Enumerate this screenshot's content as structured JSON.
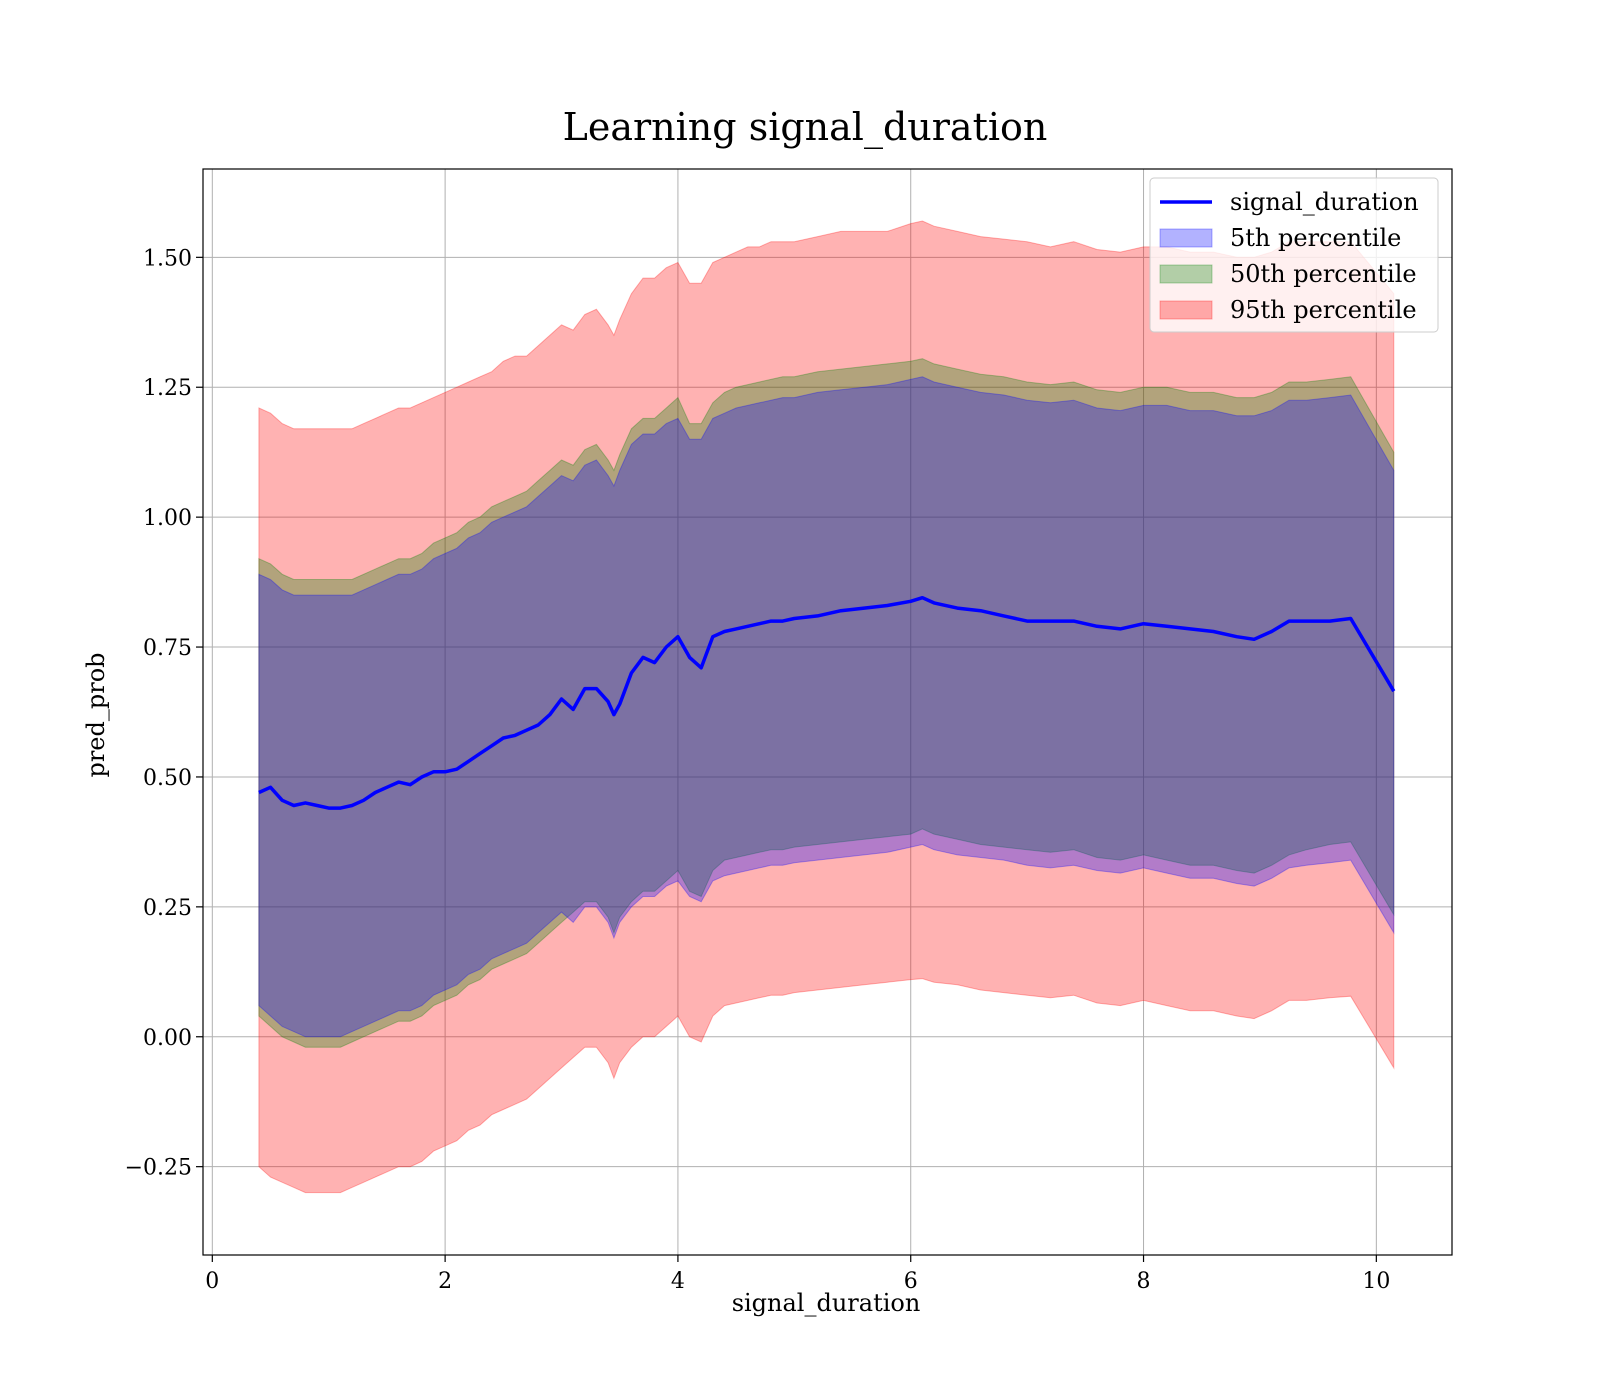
{
  "chart_data": {
    "type": "area",
    "title": "Learning signal_duration",
    "xlabel": "signal_duration",
    "ylabel": "pred_prob",
    "xlim": [
      -0.08,
      10.65
    ],
    "ylim": [
      -0.42,
      1.67
    ],
    "xticks": [
      0,
      2,
      4,
      6,
      8,
      10
    ],
    "xtick_labels": [
      "0",
      "2",
      "4",
      "6",
      "8",
      "10"
    ],
    "yticks": [
      -0.25,
      0.0,
      0.25,
      0.5,
      0.75,
      1.0,
      1.25,
      1.5
    ],
    "ytick_labels": [
      "−0.25",
      "0.00",
      "0.25",
      "0.50",
      "0.75",
      "1.00",
      "1.25",
      "1.50"
    ],
    "grid": true,
    "legend_position": "top-right",
    "legend": [
      {
        "label": "signal_duration",
        "kind": "line",
        "color": "#0000ff"
      },
      {
        "label": "5th percentile",
        "kind": "band",
        "color": "#0000ff"
      },
      {
        "label": "50th percentile",
        "kind": "band",
        "color": "#008000"
      },
      {
        "label": "95th percentile",
        "kind": "band",
        "color": "#ff0000"
      }
    ],
    "x": [
      0.4,
      0.5,
      0.6,
      0.7,
      0.8,
      0.9,
      1.0,
      1.1,
      1.2,
      1.3,
      1.4,
      1.5,
      1.6,
      1.7,
      1.8,
      1.9,
      2.0,
      2.1,
      2.2,
      2.3,
      2.4,
      2.5,
      2.6,
      2.7,
      2.8,
      2.9,
      3.0,
      3.1,
      3.2,
      3.3,
      3.4,
      3.45,
      3.5,
      3.6,
      3.7,
      3.8,
      3.9,
      4.0,
      4.1,
      4.2,
      4.3,
      4.4,
      4.5,
      4.6,
      4.7,
      4.8,
      4.9,
      5.0,
      5.2,
      5.4,
      5.6,
      5.8,
      6.0,
      6.1,
      6.2,
      6.4,
      6.6,
      6.8,
      7.0,
      7.2,
      7.4,
      7.6,
      7.8,
      8.0,
      8.2,
      8.4,
      8.6,
      8.8,
      8.95,
      9.1,
      9.25,
      9.4,
      9.6,
      9.78,
      10.15
    ],
    "series": [
      {
        "name": "signal_duration",
        "kind": "line",
        "color": "#0000ff",
        "values": [
          0.47,
          0.48,
          0.455,
          0.445,
          0.45,
          0.445,
          0.44,
          0.44,
          0.445,
          0.455,
          0.47,
          0.48,
          0.49,
          0.485,
          0.5,
          0.51,
          0.51,
          0.515,
          0.53,
          0.545,
          0.56,
          0.575,
          0.58,
          0.59,
          0.6,
          0.62,
          0.65,
          0.63,
          0.67,
          0.67,
          0.645,
          0.62,
          0.64,
          0.7,
          0.73,
          0.72,
          0.75,
          0.77,
          0.73,
          0.71,
          0.77,
          0.78,
          0.785,
          0.79,
          0.795,
          0.8,
          0.8,
          0.805,
          0.81,
          0.82,
          0.825,
          0.83,
          0.838,
          0.845,
          0.835,
          0.825,
          0.82,
          0.81,
          0.8,
          0.8,
          0.8,
          0.79,
          0.785,
          0.795,
          0.79,
          0.785,
          0.78,
          0.77,
          0.765,
          0.78,
          0.8,
          0.8,
          0.8,
          0.805,
          0.665
        ]
      },
      {
        "name": "95th percentile",
        "kind": "band",
        "color": "#ff0000",
        "lower": [
          -0.25,
          -0.27,
          -0.28,
          -0.29,
          -0.3,
          -0.3,
          -0.3,
          -0.3,
          -0.29,
          -0.28,
          -0.27,
          -0.26,
          -0.25,
          -0.25,
          -0.24,
          -0.22,
          -0.21,
          -0.2,
          -0.18,
          -0.17,
          -0.15,
          -0.14,
          -0.13,
          -0.12,
          -0.1,
          -0.08,
          -0.06,
          -0.04,
          -0.02,
          -0.02,
          -0.05,
          -0.08,
          -0.05,
          -0.02,
          0.0,
          0.0,
          0.02,
          0.04,
          0.0,
          -0.01,
          0.04,
          0.06,
          0.065,
          0.07,
          0.075,
          0.08,
          0.08,
          0.085,
          0.09,
          0.095,
          0.1,
          0.105,
          0.11,
          0.112,
          0.105,
          0.1,
          0.09,
          0.085,
          0.08,
          0.075,
          0.08,
          0.065,
          0.06,
          0.07,
          0.06,
          0.05,
          0.05,
          0.04,
          0.035,
          0.05,
          0.07,
          0.07,
          0.075,
          0.078,
          -0.06
        ],
        "upper": [
          1.21,
          1.2,
          1.18,
          1.17,
          1.17,
          1.17,
          1.17,
          1.17,
          1.17,
          1.18,
          1.19,
          1.2,
          1.21,
          1.21,
          1.22,
          1.23,
          1.24,
          1.25,
          1.26,
          1.27,
          1.28,
          1.3,
          1.31,
          1.31,
          1.33,
          1.35,
          1.37,
          1.36,
          1.39,
          1.4,
          1.37,
          1.35,
          1.38,
          1.43,
          1.46,
          1.46,
          1.48,
          1.49,
          1.45,
          1.45,
          1.49,
          1.5,
          1.51,
          1.52,
          1.52,
          1.53,
          1.53,
          1.53,
          1.54,
          1.55,
          1.55,
          1.55,
          1.565,
          1.57,
          1.56,
          1.55,
          1.54,
          1.535,
          1.53,
          1.52,
          1.53,
          1.515,
          1.51,
          1.52,
          1.52,
          1.51,
          1.51,
          1.5,
          1.5,
          1.51,
          1.53,
          1.53,
          1.53,
          1.53,
          1.43
        ]
      },
      {
        "name": "50th percentile",
        "kind": "band",
        "color": "#008000",
        "lower": [
          0.04,
          0.02,
          0.0,
          -0.01,
          -0.02,
          -0.02,
          -0.02,
          -0.02,
          -0.01,
          0.0,
          0.01,
          0.02,
          0.03,
          0.03,
          0.04,
          0.06,
          0.07,
          0.08,
          0.1,
          0.11,
          0.13,
          0.14,
          0.15,
          0.16,
          0.18,
          0.2,
          0.22,
          0.24,
          0.26,
          0.26,
          0.23,
          0.2,
          0.23,
          0.26,
          0.28,
          0.28,
          0.3,
          0.32,
          0.28,
          0.27,
          0.32,
          0.34,
          0.345,
          0.35,
          0.355,
          0.36,
          0.36,
          0.365,
          0.37,
          0.375,
          0.38,
          0.385,
          0.39,
          0.4,
          0.39,
          0.38,
          0.37,
          0.365,
          0.36,
          0.355,
          0.36,
          0.345,
          0.34,
          0.35,
          0.34,
          0.33,
          0.33,
          0.32,
          0.315,
          0.33,
          0.35,
          0.36,
          0.37,
          0.375,
          0.235
        ],
        "upper": [
          0.92,
          0.91,
          0.89,
          0.88,
          0.88,
          0.88,
          0.88,
          0.88,
          0.88,
          0.89,
          0.9,
          0.91,
          0.92,
          0.92,
          0.93,
          0.95,
          0.96,
          0.97,
          0.99,
          1.0,
          1.02,
          1.03,
          1.04,
          1.05,
          1.07,
          1.09,
          1.11,
          1.1,
          1.13,
          1.14,
          1.11,
          1.09,
          1.12,
          1.17,
          1.19,
          1.19,
          1.21,
          1.23,
          1.18,
          1.18,
          1.22,
          1.24,
          1.25,
          1.255,
          1.26,
          1.265,
          1.27,
          1.27,
          1.28,
          1.285,
          1.29,
          1.295,
          1.3,
          1.305,
          1.295,
          1.285,
          1.275,
          1.27,
          1.26,
          1.255,
          1.26,
          1.245,
          1.24,
          1.25,
          1.25,
          1.24,
          1.24,
          1.23,
          1.23,
          1.24,
          1.26,
          1.26,
          1.265,
          1.27,
          1.125
        ]
      },
      {
        "name": "5th percentile",
        "kind": "band",
        "color": "#0000ff",
        "lower": [
          0.06,
          0.04,
          0.02,
          0.01,
          0.0,
          0.0,
          0.0,
          0.0,
          0.01,
          0.02,
          0.03,
          0.04,
          0.05,
          0.05,
          0.06,
          0.08,
          0.09,
          0.1,
          0.12,
          0.13,
          0.15,
          0.16,
          0.17,
          0.18,
          0.2,
          0.22,
          0.24,
          0.22,
          0.25,
          0.25,
          0.22,
          0.19,
          0.22,
          0.25,
          0.27,
          0.27,
          0.29,
          0.3,
          0.27,
          0.26,
          0.3,
          0.31,
          0.315,
          0.32,
          0.325,
          0.33,
          0.33,
          0.335,
          0.34,
          0.345,
          0.35,
          0.355,
          0.365,
          0.37,
          0.36,
          0.35,
          0.345,
          0.34,
          0.33,
          0.325,
          0.33,
          0.32,
          0.315,
          0.325,
          0.315,
          0.305,
          0.305,
          0.295,
          0.29,
          0.305,
          0.325,
          0.33,
          0.335,
          0.34,
          0.2
        ],
        "upper": [
          0.89,
          0.88,
          0.86,
          0.85,
          0.85,
          0.85,
          0.85,
          0.85,
          0.85,
          0.86,
          0.87,
          0.88,
          0.89,
          0.89,
          0.9,
          0.92,
          0.93,
          0.94,
          0.96,
          0.97,
          0.99,
          1.0,
          1.01,
          1.02,
          1.04,
          1.06,
          1.08,
          1.07,
          1.1,
          1.11,
          1.08,
          1.06,
          1.09,
          1.14,
          1.16,
          1.16,
          1.18,
          1.19,
          1.15,
          1.15,
          1.19,
          1.2,
          1.21,
          1.215,
          1.22,
          1.225,
          1.23,
          1.23,
          1.24,
          1.245,
          1.25,
          1.255,
          1.265,
          1.27,
          1.26,
          1.25,
          1.24,
          1.235,
          1.225,
          1.22,
          1.225,
          1.21,
          1.205,
          1.215,
          1.215,
          1.205,
          1.205,
          1.195,
          1.195,
          1.205,
          1.225,
          1.225,
          1.23,
          1.235,
          1.09
        ]
      }
    ]
  }
}
